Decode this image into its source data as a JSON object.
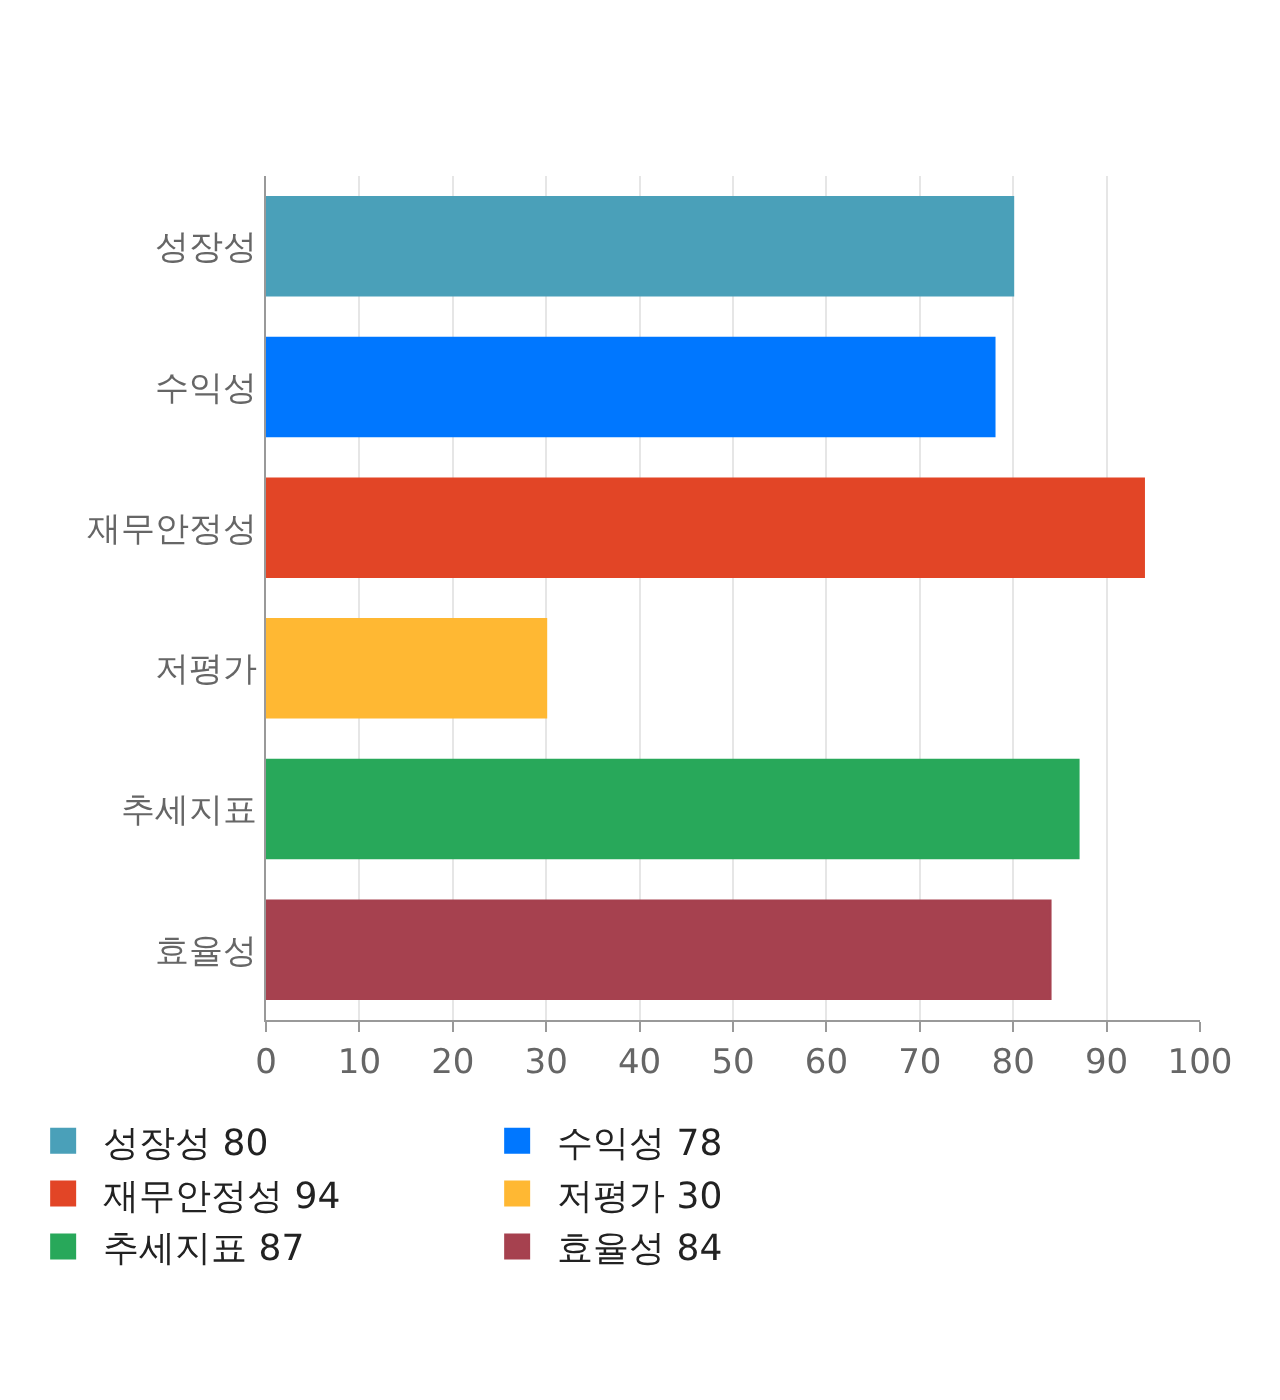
{
  "chart_data": {
    "type": "bar",
    "orientation": "horizontal",
    "categories": [
      "성장성",
      "수익성",
      "재무안정성",
      "저평가",
      "추세지표",
      "효율성"
    ],
    "series": [
      {
        "name": "성장성 80",
        "color": "#4aa0b9",
        "values": [
          80,
          null,
          null,
          null,
          null,
          null
        ]
      },
      {
        "name": "수익성 78",
        "color": "#0077ff",
        "values": [
          null,
          78,
          null,
          null,
          null,
          null
        ]
      },
      {
        "name": "재무안정성 94",
        "color": "#e24526",
        "values": [
          null,
          null,
          94,
          null,
          null,
          null
        ]
      },
      {
        "name": "저평가 30",
        "color": "#ffb833",
        "values": [
          null,
          null,
          null,
          30,
          null,
          null
        ]
      },
      {
        "name": "추세지표 87",
        "color": "#28a85a",
        "values": [
          null,
          null,
          null,
          null,
          87,
          null
        ]
      },
      {
        "name": "효율성 84",
        "color": "#a6414f",
        "values": [
          null,
          null,
          null,
          null,
          null,
          84
        ]
      }
    ],
    "xlim": [
      0,
      100
    ],
    "xticks": [
      0,
      10,
      20,
      30,
      40,
      50,
      60,
      70,
      80,
      90,
      100
    ],
    "grid": "x",
    "legend": "bottom"
  }
}
